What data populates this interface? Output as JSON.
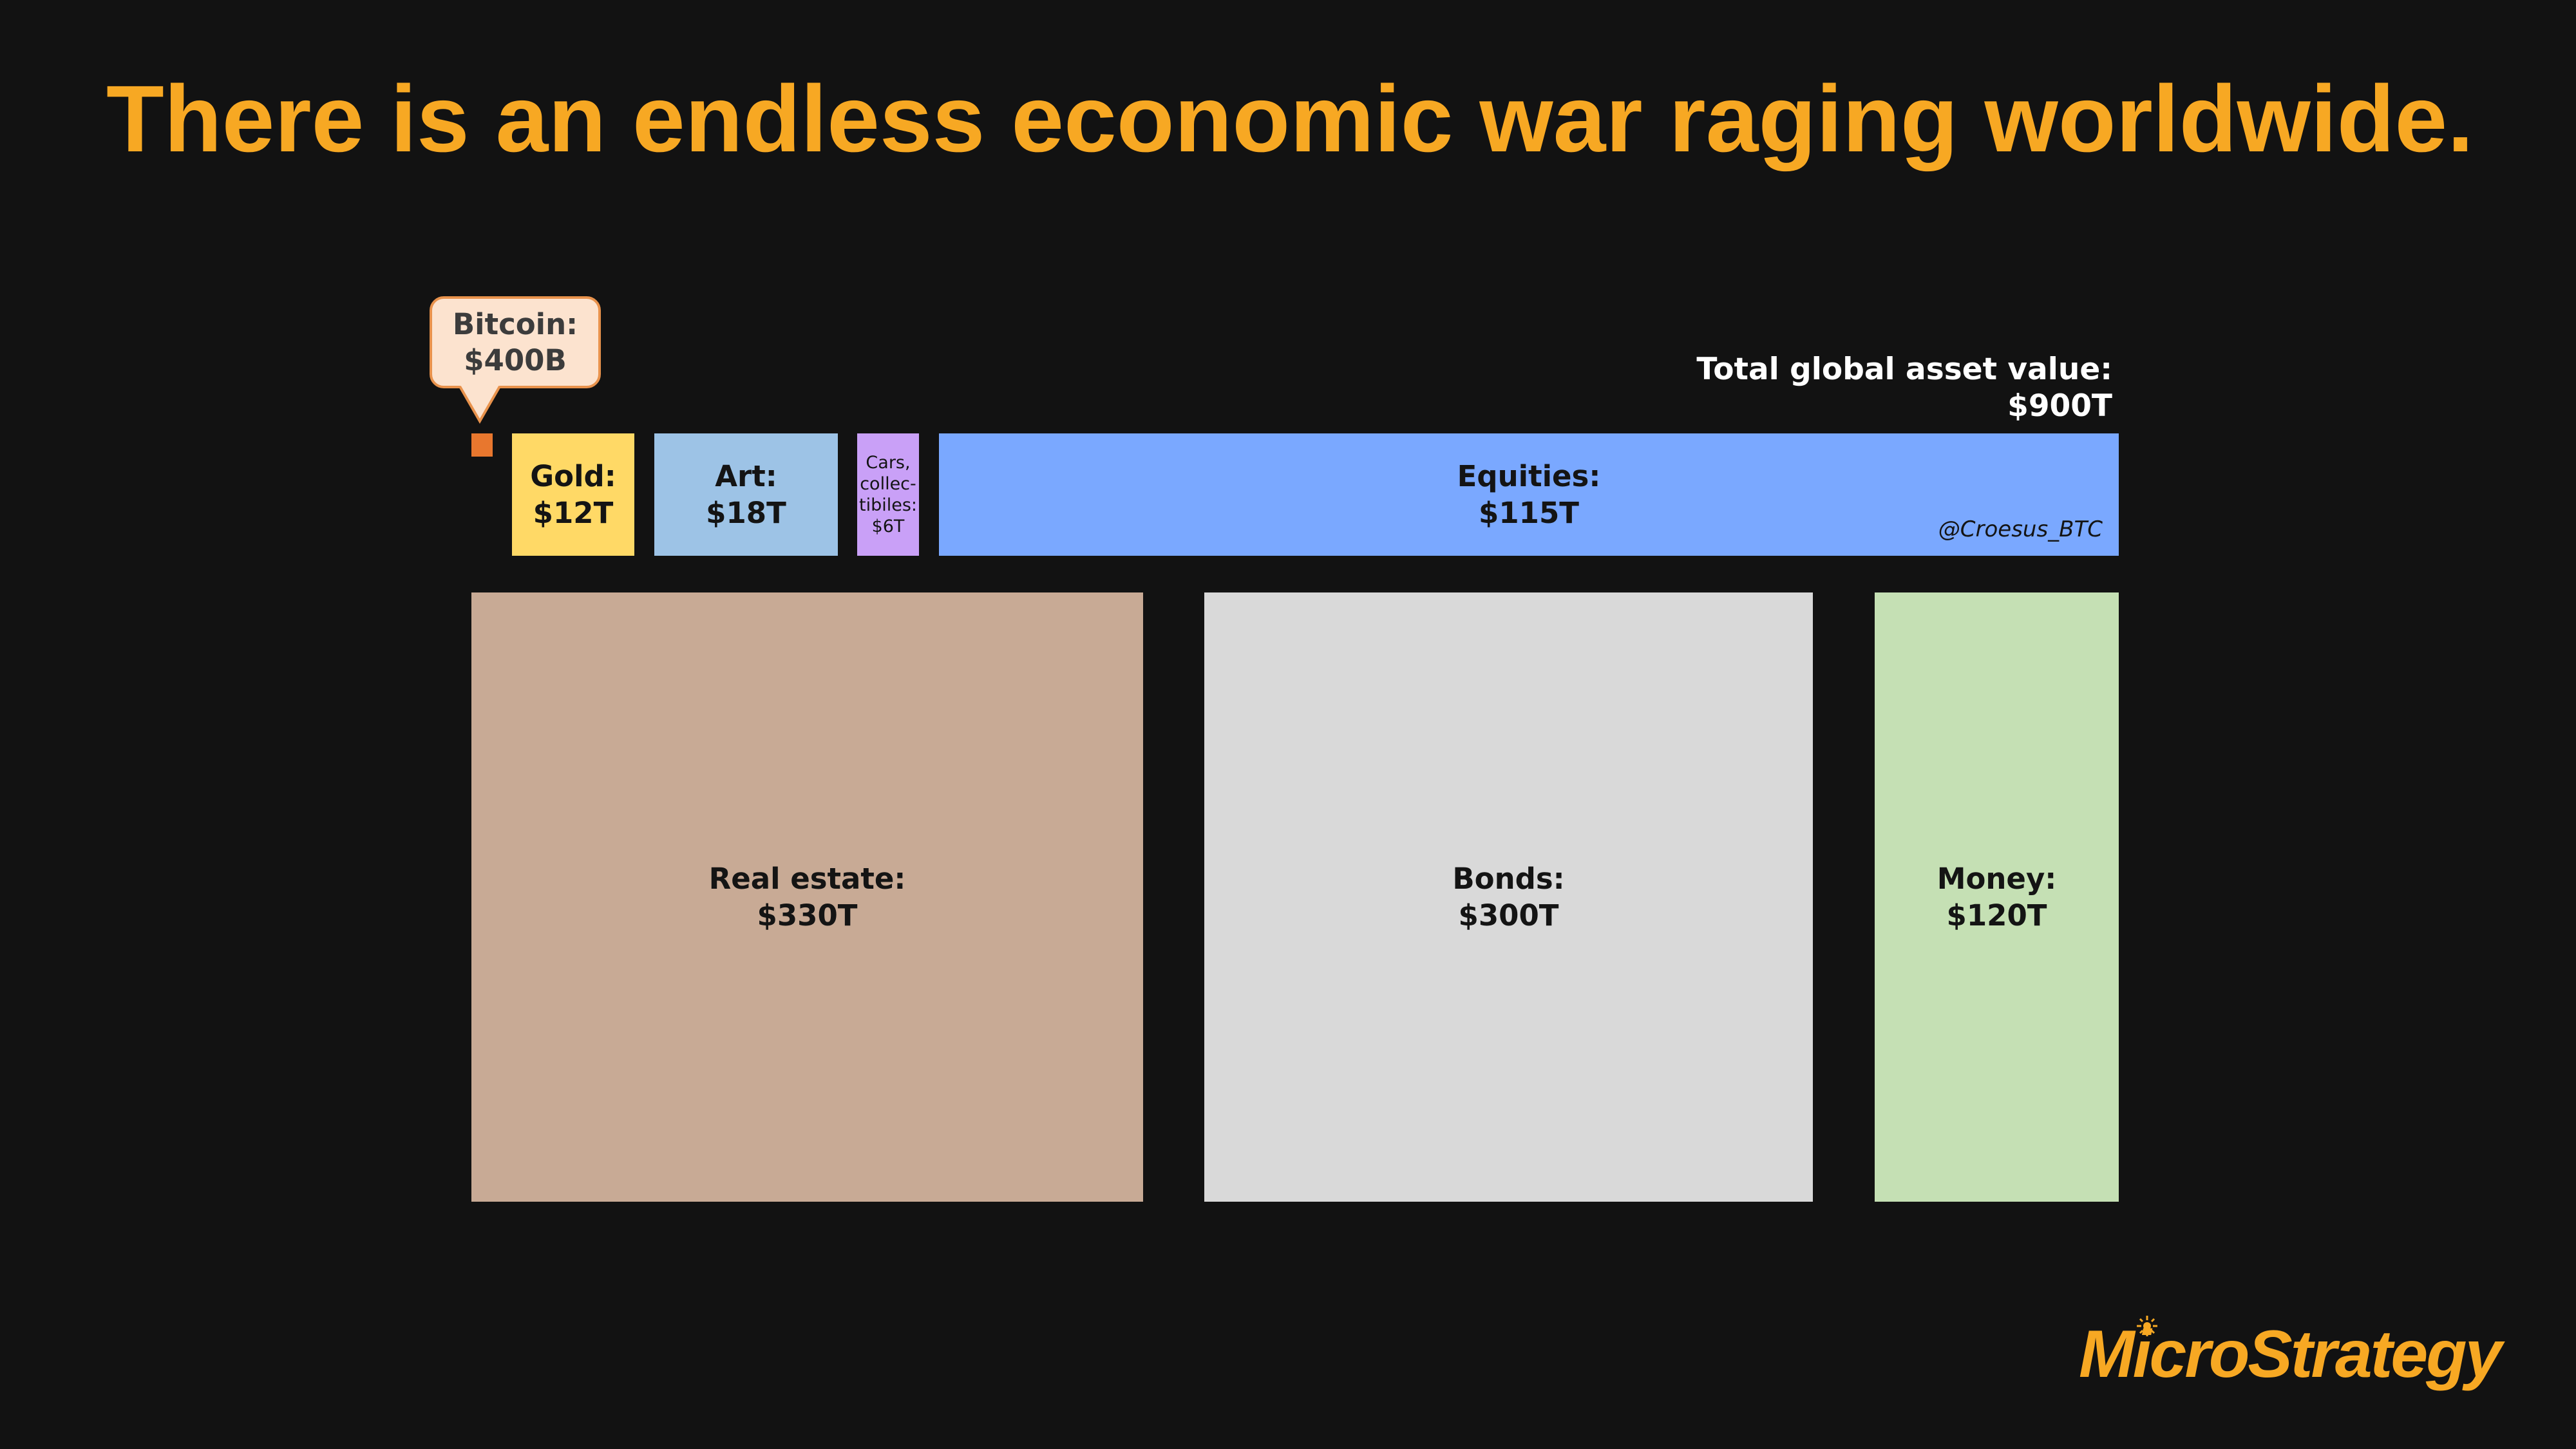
{
  "slide": {
    "title": "There is an endless economic war raging worldwide.",
    "logo": "MicroStrategy",
    "colors": {
      "title": "#f7a823",
      "background": "#121212",
      "logo": "#f7a823"
    }
  },
  "chart_data": {
    "type": "treemap",
    "unit": "USD",
    "total": {
      "label": "Total global asset value:",
      "value": "$900T",
      "value_usd_trillions": 900
    },
    "credit": "@Croesus_BTC",
    "callout": {
      "label": "Bitcoin:",
      "value": "$400B",
      "value_usd_trillions": 0.4
    },
    "series": [
      {
        "name": "Bitcoin",
        "label": "Bitcoin:",
        "value": "$400B",
        "value_usd_trillions": 0.4,
        "color": "#e8772e"
      },
      {
        "name": "Gold",
        "label": "Gold:",
        "value": "$12T",
        "value_usd_trillions": 12,
        "color": "#ffd966"
      },
      {
        "name": "Art",
        "label": "Art:",
        "value": "$18T",
        "value_usd_trillions": 18,
        "color": "#9dc3e6"
      },
      {
        "name": "Cars, collectibles",
        "label_lines": [
          "Cars,",
          "collec-",
          "tibiles:"
        ],
        "value": "$6T",
        "value_usd_trillions": 6,
        "color": "#c9a0f7"
      },
      {
        "name": "Equities",
        "label": "Equities:",
        "value": "$115T",
        "value_usd_trillions": 115,
        "color": "#7aa8ff"
      },
      {
        "name": "Real estate",
        "label": "Real estate:",
        "value": "$330T",
        "value_usd_trillions": 330,
        "color": "#c8aa95"
      },
      {
        "name": "Bonds",
        "label": "Bonds:",
        "value": "$300T",
        "value_usd_trillions": 300,
        "color": "#d9d9d9"
      },
      {
        "name": "Money",
        "label": "Money:",
        "value": "$120T",
        "value_usd_trillions": 120,
        "color": "#c5e0b4"
      }
    ]
  }
}
